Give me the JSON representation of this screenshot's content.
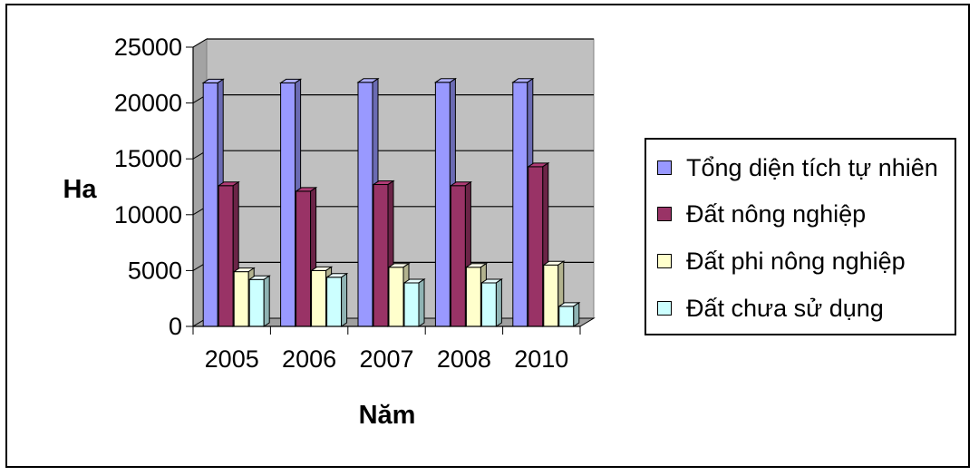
{
  "chart_data": {
    "type": "bar",
    "style": "3d-clustered-column",
    "categories": [
      "2005",
      "2006",
      "2007",
      "2008",
      "2010"
    ],
    "series": [
      {
        "name": "Tổng diện tích tự nhiên",
        "color": "#9999ff",
        "values": [
          21800,
          21800,
          21850,
          21850,
          21850
        ]
      },
      {
        "name": "Đất nông nghiệp",
        "color": "#993366",
        "values": [
          12600,
          12100,
          12700,
          12600,
          14300
        ]
      },
      {
        "name": "Đất phi nông nghiệp",
        "color": "#ffffcc",
        "values": [
          4900,
          5000,
          5300,
          5300,
          5500
        ]
      },
      {
        "name": "Đất chưa sử dụng",
        "color": "#ccffff",
        "values": [
          4200,
          4400,
          3900,
          3900,
          1800
        ]
      }
    ],
    "xlabel": "Năm",
    "ylabel": "Ha",
    "ylim": [
      0,
      25000
    ],
    "yticks": [
      "0",
      "5000",
      "10000",
      "15000",
      "20000",
      "25000"
    ],
    "grid": true,
    "wall_color": "#c0c0c0",
    "legend_position": "right"
  }
}
